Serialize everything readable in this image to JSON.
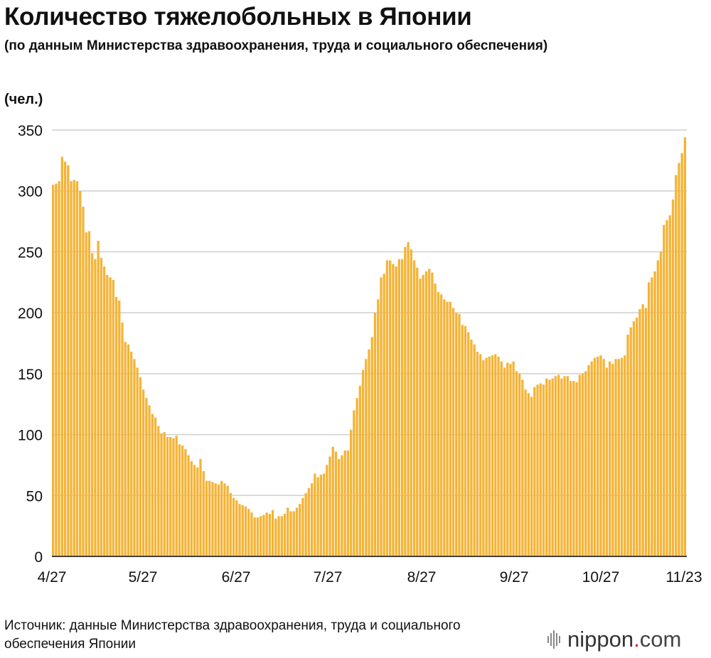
{
  "title": "Количество тяжелобольных в Японии",
  "subtitle": "(по данным Министерства здравоохранения, труда и социального обеспечения)",
  "source": "Источник: данные Министерства здравоохранения, труда и социального обеспечения Японии",
  "logo": {
    "name": "nippon",
    "dot": ".",
    "tld": "com"
  },
  "chart_data": {
    "type": "bar",
    "title": "Количество тяжелобольных в Японии",
    "ylabel": "(чел.)",
    "ylim": [
      0,
      350
    ],
    "yticks": [
      0,
      50,
      100,
      150,
      200,
      250,
      300,
      350
    ],
    "xticks": [
      "4/27",
      "5/27",
      "6/27",
      "7/27",
      "8/27",
      "9/27",
      "10/27",
      "11/23"
    ],
    "grid": true,
    "bar_color": "#F5B336",
    "series": [
      {
        "name": "",
        "values": [
          305,
          306,
          308,
          328,
          324,
          321,
          308,
          309,
          308,
          300,
          287,
          266,
          267,
          249,
          244,
          259,
          245,
          238,
          231,
          229,
          227,
          213,
          210,
          192,
          176,
          174,
          168,
          162,
          155,
          147,
          137,
          130,
          124,
          117,
          114,
          107,
          101,
          102,
          98,
          98,
          97,
          99,
          92,
          91,
          88,
          83,
          78,
          75,
          73,
          80,
          70,
          62,
          62,
          61,
          60,
          59,
          62,
          60,
          58,
          52,
          48,
          46,
          43,
          42,
          41,
          39,
          36,
          32,
          32,
          33,
          34,
          36,
          35,
          38,
          31,
          33,
          33,
          35,
          40,
          37,
          37,
          40,
          43,
          48,
          52,
          56,
          60,
          68,
          65,
          67,
          68,
          75,
          82,
          90,
          86,
          80,
          83,
          87,
          87,
          104,
          120,
          130,
          140,
          153,
          162,
          170,
          180,
          200,
          211,
          229,
          232,
          243,
          243,
          240,
          238,
          244,
          244,
          254,
          258,
          252,
          243,
          237,
          228,
          231,
          234,
          236,
          233,
          224,
          217,
          215,
          211,
          209,
          209,
          204,
          200,
          199,
          190,
          189,
          184,
          178,
          174,
          168,
          166,
          161,
          163,
          164,
          165,
          166,
          164,
          160,
          155,
          159,
          158,
          160,
          152,
          150,
          145,
          137,
          134,
          131,
          139,
          141,
          142,
          141,
          146,
          145,
          146,
          148,
          149,
          146,
          148,
          148,
          144,
          144,
          143,
          149,
          150,
          152,
          157,
          160,
          163,
          164,
          165,
          162,
          155,
          160,
          158,
          162,
          162,
          163,
          165,
          182,
          188,
          193,
          196,
          203,
          207,
          204,
          225,
          229,
          234,
          243,
          250,
          272,
          276,
          280,
          293,
          313,
          323,
          331,
          344
        ]
      }
    ]
  }
}
